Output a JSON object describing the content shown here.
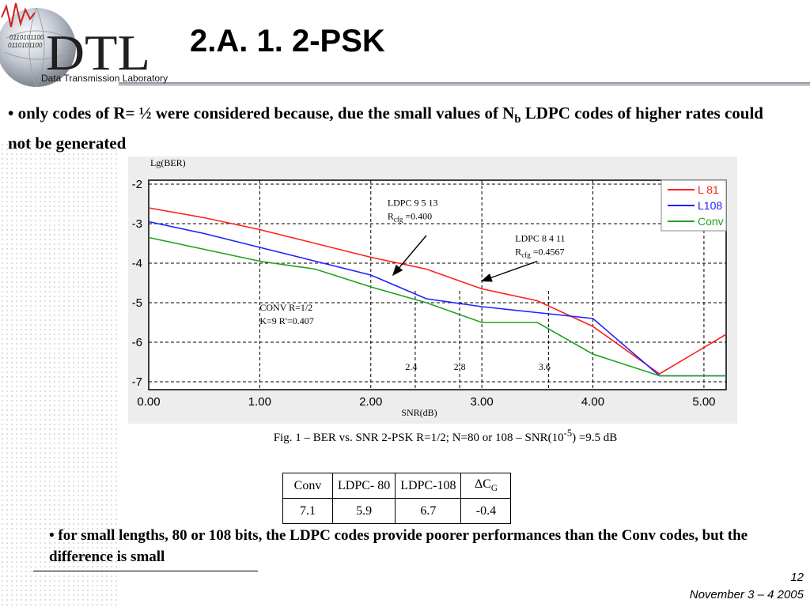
{
  "slide": {
    "title": "2.A. 1. 2-PSK",
    "logo_text": "DTL",
    "logo_subtitle": "Data Transmission Laboratory",
    "logo_binary": [
      "0110101100",
      "0110101100"
    ],
    "bullet1_pre": "• only codes of R= ½ were considered because, due the small values of N",
    "bullet1_sub": "b",
    "bullet1_post": " LDPC codes of higher  rates could not be generated",
    "bullet2": "• for small lengths, 80 or 108 bits, the LDPC codes provide poorer performances than the Conv codes, but the difference is small",
    "caption_pre": "Fig. 1 – BER vs. SNR 2-PSK R=1/2; N=80 or 108 – SNR(10",
    "caption_sup": "-5",
    "caption_post": ") =9.5 dB",
    "page_number": "12",
    "date": "November 3 – 4 2005"
  },
  "table": {
    "headers": [
      "Conv",
      "LDPC- 80",
      "LDPC-108",
      "ΔC"
    ],
    "header_sub": "G",
    "values": [
      "7.1",
      "5.9",
      "6.7",
      "-0.4"
    ]
  },
  "chart_data": {
    "type": "line",
    "ylabel": "Lg(BER)",
    "xlabel": "SNR(dB)",
    "xlim": [
      0,
      5.2
    ],
    "ylim": [
      -7.2,
      -1.9
    ],
    "xticks": [
      0,
      1,
      2,
      3,
      4,
      5
    ],
    "xtick_labels": [
      "0.00",
      "1.00",
      "2.00",
      "3.00",
      "4.00",
      "5.00"
    ],
    "yticks": [
      -2,
      -3,
      -4,
      -5,
      -6,
      -7
    ],
    "ytick_labels": [
      "-2",
      "-3",
      "-4",
      "-5",
      "-6",
      "-7"
    ],
    "grid": true,
    "legend_position": "top-right",
    "series": [
      {
        "name": "L 81",
        "color": "#ff2020",
        "x": [
          0,
          0.5,
          1.0,
          1.5,
          2.0,
          2.5,
          3.0,
          3.5,
          4.0,
          4.6,
          5.2
        ],
        "y": [
          -2.6,
          -2.85,
          -3.15,
          -3.5,
          -3.85,
          -4.15,
          -4.65,
          -4.95,
          -5.6,
          -6.8,
          -5.8
        ]
      },
      {
        "name": "L108",
        "color": "#2020ff",
        "x": [
          0,
          0.5,
          1.0,
          1.5,
          2.0,
          2.5,
          3.0,
          3.5,
          4.0,
          4.6,
          5.2
        ],
        "y": [
          -2.95,
          -3.25,
          -3.6,
          -3.95,
          -4.3,
          -4.9,
          -5.1,
          -5.25,
          -5.4,
          -6.85,
          -6.85
        ]
      },
      {
        "name": "Conv",
        "color": "#20a020",
        "x": [
          0,
          0.5,
          1.0,
          1.5,
          2.0,
          2.5,
          3.0,
          3.5,
          4.0,
          4.6,
          5.2
        ],
        "y": [
          -3.35,
          -3.65,
          -3.95,
          -4.15,
          -4.6,
          -5.0,
          -5.5,
          -5.5,
          -6.3,
          -6.85,
          -6.85
        ]
      }
    ],
    "vlines": [
      {
        "x": 2.4,
        "label": "2.4"
      },
      {
        "x": 2.8,
        "label": "2.8"
      },
      {
        "x": 3.6,
        "label": "3.6"
      }
    ],
    "annotations": [
      {
        "lines": [
          "LDPC 9 5 13",
          "R|cfg| =0.400"
        ],
        "at": [
          2.15,
          -2.55
        ],
        "arrow_from": [
          2.5,
          -3.3
        ],
        "arrow_to": [
          2.2,
          -4.3
        ]
      },
      {
        "lines": [
          "LDPC 8 4 11",
          "R|cfg| =0.4567"
        ],
        "at": [
          3.3,
          -3.45
        ],
        "arrow_from": [
          3.5,
          -3.95
        ],
        "arrow_to": [
          3.0,
          -4.45
        ]
      },
      {
        "lines": [
          "CONV R=1/2",
          "K=9 R'=0.407"
        ],
        "at": [
          1.0,
          -5.2
        ]
      }
    ]
  }
}
